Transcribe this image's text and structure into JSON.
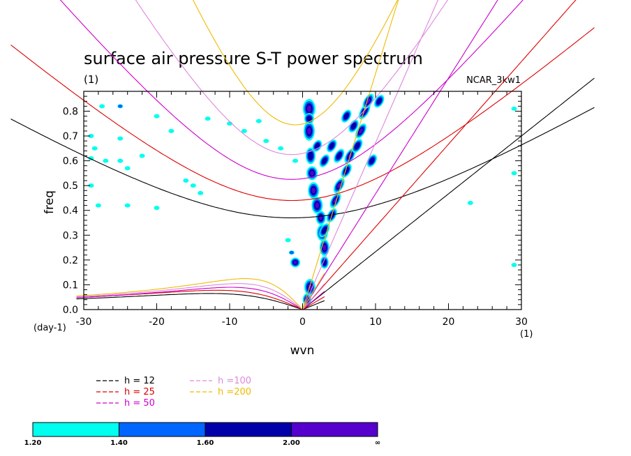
{
  "chart_data": {
    "type": "line",
    "title": "surface air pressure S-T power spectrum",
    "subtitle": "(1)",
    "model_label": "NCAR_3kw1",
    "xlabel": "wvn",
    "ylabel": "freq",
    "x_unit_label": "(1)",
    "y_unit_label": "(day-1)",
    "xlim": [
      -30,
      30
    ],
    "ylim": [
      0,
      0.88
    ],
    "x_ticks": [
      -30,
      -20,
      -10,
      0,
      10,
      20,
      30
    ],
    "y_ticks": [
      0.0,
      0.1,
      0.2,
      0.3,
      0.4,
      0.5,
      0.6,
      0.7,
      0.8
    ],
    "x_tick_labels": [
      "-30",
      "-20",
      "-10",
      "0",
      "10",
      "20",
      "30"
    ],
    "y_tick_labels": [
      "0.0",
      "0.1",
      "0.2",
      "0.3",
      "0.4",
      "0.5",
      "0.6",
      "0.7",
      "0.8"
    ],
    "series": [
      {
        "name": "h = 12",
        "h": 12,
        "color": "#000000"
      },
      {
        "name": "h = 25",
        "h": 25,
        "color": "#dd0000"
      },
      {
        "name": "h = 50",
        "h": 50,
        "color": "#cc00cc"
      },
      {
        "name": "h =100",
        "h": 100,
        "color": "#dd88dd"
      },
      {
        "name": "h =200",
        "h": 200,
        "color": "#eebb00"
      }
    ],
    "dispersion_curves": {
      "inertia_gravity_min_freq": [
        {
          "h": 12,
          "min_freq": 0.37,
          "at_wvn": -1.5
        },
        {
          "h": 25,
          "min_freq": 0.44,
          "at_wvn": -1.5
        },
        {
          "h": 50,
          "min_freq": 0.525,
          "at_wvn": -1.5
        },
        {
          "h": 100,
          "min_freq": 0.625,
          "at_wvn": -1.5
        },
        {
          "h": 200,
          "min_freq": 0.745,
          "at_wvn": -1
        }
      ],
      "kelvin_freq_at_wvn_30": [
        {
          "h": 12,
          "freq": 0.7
        },
        {
          "h": 25,
          "freq": 1.0
        },
        {
          "h": 50,
          "freq": 1.4
        }
      ],
      "rossby_peak": [
        {
          "h": 12,
          "freq": 0.065,
          "at_wvn": -13
        },
        {
          "h": 25,
          "freq": 0.078,
          "at_wvn": -12
        },
        {
          "h": 50,
          "freq": 0.09,
          "at_wvn": -10
        },
        {
          "h": 100,
          "freq": 0.105,
          "at_wvn": -9
        },
        {
          "h": 200,
          "freq": 0.125,
          "at_wvn": -8
        }
      ]
    },
    "shading": {
      "levels": [
        "1.20",
        "1.40",
        "1.60",
        "2.00",
        "∞"
      ],
      "colors": [
        "#00ffee",
        "#0066ff",
        "#0000aa",
        "#5500cc"
      ]
    }
  }
}
